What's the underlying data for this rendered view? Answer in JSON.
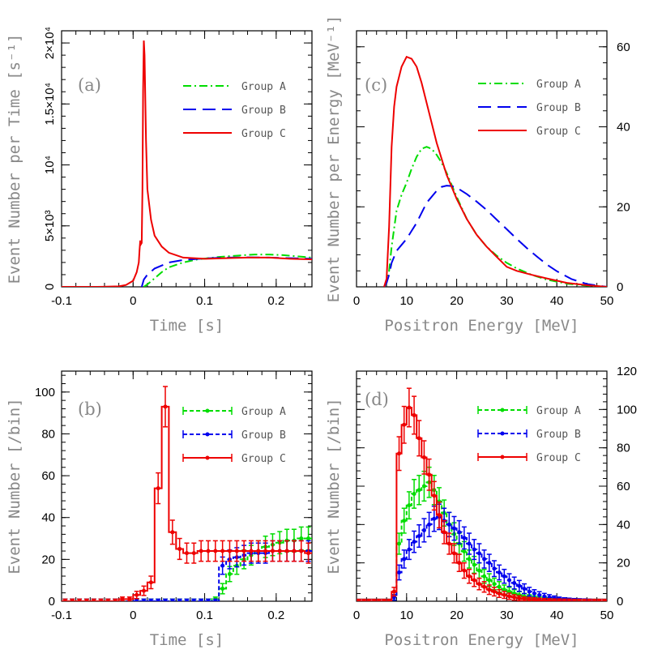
{
  "chart_data": [
    {
      "panel": "(a)",
      "type": "line",
      "xlabel": "Time [s]",
      "ylabel": "Event Number per Time [s⁻¹]",
      "xlim": [
        -0.1,
        0.25
      ],
      "ylim": [
        0,
        21000
      ],
      "xticks": [
        -0.1,
        0,
        0.1,
        0.2
      ],
      "xtick_labels": [
        "-0.1",
        "0",
        "0.1",
        "0.2"
      ],
      "yticks": [
        0,
        5000,
        10000,
        15000,
        20000
      ],
      "ytick_labels": [
        "0",
        "5×10³",
        "10⁴",
        "1.5×10⁴",
        "2×10⁴"
      ],
      "legend_position": "top-right",
      "series": [
        {
          "name": "Group A",
          "color": "#00dd00",
          "style": "dashdot",
          "x": [
            0.015,
            0.02,
            0.03,
            0.04,
            0.05,
            0.07,
            0.09,
            0.12,
            0.15,
            0.17,
            0.19,
            0.21,
            0.23,
            0.25
          ],
          "y": [
            0,
            200,
            700,
            1200,
            1600,
            2000,
            2250,
            2450,
            2580,
            2650,
            2650,
            2600,
            2500,
            2400
          ]
        },
        {
          "name": "Group B",
          "color": "#0000ee",
          "style": "longdash",
          "x": [
            0.012,
            0.015,
            0.02,
            0.03,
            0.05,
            0.07,
            0.1,
            0.13,
            0.16,
            0.19,
            0.22,
            0.25
          ],
          "y": [
            0,
            600,
            1000,
            1500,
            2000,
            2200,
            2330,
            2400,
            2420,
            2400,
            2350,
            2300
          ]
        },
        {
          "name": "Group C",
          "color": "#ee0000",
          "style": "solid",
          "x": [
            -0.1,
            -0.05,
            -0.02,
            -0.01,
            0,
            0.005,
            0.008,
            0.009,
            0.01,
            0.011,
            0.012,
            0.013,
            0.014,
            0.015,
            0.016,
            0.018,
            0.02,
            0.025,
            0.03,
            0.04,
            0.05,
            0.07,
            0.1,
            0.13,
            0.16,
            0.19,
            0.22,
            0.25
          ],
          "y": [
            0,
            0,
            40,
            150,
            500,
            1200,
            2000,
            3000,
            3800,
            3500,
            3600,
            8000,
            16000,
            20200,
            19000,
            12000,
            8000,
            5500,
            4200,
            3300,
            2800,
            2400,
            2300,
            2350,
            2400,
            2400,
            2300,
            2250
          ]
        }
      ]
    },
    {
      "panel": "(c)",
      "type": "line",
      "xlabel": "Positron Energy [MeV]",
      "ylabel": "Event Number per Energy [MeV⁻¹]",
      "xlim": [
        0,
        50
      ],
      "ylim": [
        0,
        64
      ],
      "xticks": [
        0,
        10,
        20,
        30,
        40,
        50
      ],
      "xtick_labels": [
        "0",
        "10",
        "20",
        "30",
        "40",
        "50"
      ],
      "yticks": [
        0,
        20,
        40,
        60
      ],
      "ytick_labels": [
        "0",
        "20",
        "40",
        "60"
      ],
      "legend_position": "top-right",
      "series": [
        {
          "name": "Group A",
          "color": "#00dd00",
          "style": "dashdot",
          "x": [
            5.5,
            6,
            6.5,
            7,
            8,
            9,
            10,
            11,
            12,
            13,
            14,
            15,
            16,
            17,
            18,
            19,
            20,
            22,
            24,
            26,
            28,
            30,
            32,
            35,
            38,
            42,
            46,
            50
          ],
          "y": [
            0,
            1,
            4,
            10,
            19,
            23,
            26,
            29.5,
            32.5,
            34.5,
            35,
            34.5,
            33,
            31,
            28.5,
            25.5,
            22.5,
            17,
            13,
            10,
            7.8,
            6,
            4.6,
            3,
            1.8,
            0.8,
            0.3,
            0
          ]
        },
        {
          "name": "Group B",
          "color": "#0000ee",
          "style": "longdash",
          "x": [
            5.5,
            6,
            6.5,
            7,
            8,
            10,
            12,
            14,
            16,
            17,
            18,
            19,
            20,
            22,
            24,
            26,
            28,
            30,
            32,
            34,
            36,
            38,
            40,
            43,
            46,
            50
          ],
          "y": [
            0,
            1,
            3,
            6,
            9,
            12,
            16,
            21,
            24,
            25,
            25.3,
            25.2,
            24.8,
            23.2,
            21.3,
            19.2,
            16.8,
            14.4,
            12,
            9.7,
            7.6,
            5.6,
            3.9,
            1.9,
            0.7,
            0
          ]
        },
        {
          "name": "Group C",
          "color": "#ee0000",
          "style": "solid",
          "x": [
            5.5,
            6,
            6.5,
            7,
            7.5,
            8,
            9,
            10,
            11,
            12,
            13,
            14,
            15,
            16,
            18,
            20,
            22,
            24,
            26,
            28,
            30,
            32,
            35,
            38,
            42,
            46,
            50
          ],
          "y": [
            0,
            2,
            15,
            35,
            45,
            50,
            55,
            57.5,
            57,
            55,
            51,
            46,
            41,
            36,
            28,
            22,
            17,
            13,
            10,
            7.5,
            5,
            4,
            3,
            2.1,
            1,
            0.4,
            0
          ]
        }
      ]
    },
    {
      "panel": "(b)",
      "type": "histogram",
      "xlabel": "Time [s]",
      "ylabel": "Event Number [/bin]",
      "xlim": [
        -0.1,
        0.25
      ],
      "ylim": [
        0,
        110
      ],
      "xticks": [
        -0.1,
        0,
        0.1,
        0.2
      ],
      "xtick_labels": [
        "-0.1",
        "0",
        "0.1",
        "0.2"
      ],
      "yticks": [
        0,
        20,
        40,
        60,
        80,
        100
      ],
      "ytick_labels": [
        "0",
        "20",
        "40",
        "60",
        "80",
        "100"
      ],
      "bin_width": 0.01,
      "bin_start": -0.1,
      "legend_position": "top-right",
      "series": [
        {
          "name": "Group A",
          "color": "#00dd00",
          "style": "dashed",
          "values": [
            0,
            0,
            0,
            0,
            0,
            0,
            0,
            0,
            0,
            0,
            0,
            0,
            0,
            0,
            0,
            0,
            0,
            0,
            0,
            0,
            0,
            1,
            6,
            13,
            17,
            20,
            22,
            24,
            26,
            27,
            28,
            29,
            29,
            30,
            30,
            30,
            30,
            29,
            29,
            28,
            28,
            27,
            27,
            26,
            26,
            26,
            25,
            25,
            25,
            25,
            24,
            24,
            24,
            24,
            24
          ]
        },
        {
          "name": "Group B",
          "color": "#0000ee",
          "style": "dashed",
          "values": [
            0,
            0,
            0,
            0,
            0,
            0,
            0,
            0,
            0,
            0,
            0,
            0,
            0,
            0,
            0,
            0,
            0,
            0,
            0,
            0,
            0,
            0,
            17,
            20,
            21,
            22,
            23,
            23,
            23,
            24,
            24,
            24,
            24,
            24,
            24,
            24,
            24,
            24,
            24,
            24,
            24,
            24,
            24,
            24,
            24,
            24,
            24,
            24,
            24,
            24,
            24,
            24,
            24,
            24,
            24
          ]
        },
        {
          "name": "Group C",
          "color": "#ee0000",
          "style": "solid",
          "values": [
            0,
            0,
            0,
            0,
            0,
            0,
            0,
            0,
            1,
            1,
            3,
            5,
            9,
            54,
            93,
            33,
            25,
            23,
            23,
            24,
            24,
            24,
            24,
            24,
            24,
            24,
            24,
            24,
            24,
            24,
            24,
            24,
            24,
            24,
            23,
            23,
            23,
            23,
            23,
            23,
            23,
            23,
            23,
            23,
            23,
            23,
            23,
            23,
            23,
            23,
            23,
            23,
            23,
            23,
            23
          ]
        }
      ]
    },
    {
      "panel": "(d)",
      "type": "histogram",
      "xlabel": "Positron Energy [MeV]",
      "ylabel": "Event Number [/bin]",
      "xlim": [
        0,
        50
      ],
      "ylim": [
        0,
        120
      ],
      "xticks": [
        0,
        10,
        20,
        30,
        40,
        50
      ],
      "xtick_labels": [
        "0",
        "10",
        "20",
        "30",
        "40",
        "50"
      ],
      "yticks": [
        0,
        20,
        40,
        60,
        80,
        100,
        120
      ],
      "ytick_labels": [
        "0",
        "20",
        "40",
        "60",
        "80",
        "100",
        "120"
      ],
      "bin_width": 1,
      "bin_start": 0,
      "legend_position": "top-right",
      "series": [
        {
          "name": "Group A",
          "color": "#00dd00",
          "style": "dashed",
          "values": [
            0,
            0,
            0,
            0,
            0,
            0,
            0,
            2,
            30,
            42,
            50,
            56,
            58,
            60,
            62,
            58,
            52,
            46,
            40,
            35,
            30,
            26,
            22,
            19,
            16,
            13,
            11,
            9,
            7.5,
            6,
            5,
            4,
            3.2,
            2.5,
            2,
            1.5,
            1.2,
            1,
            0.8,
            0.6,
            0.4,
            0.3,
            0.2,
            0.2,
            0.1,
            0.1,
            0,
            0,
            0,
            0
          ]
        },
        {
          "name": "Group B",
          "color": "#0000ee",
          "style": "dashed",
          "values": [
            0,
            0,
            0,
            0,
            0,
            0,
            0,
            2,
            15,
            22,
            27,
            31,
            34,
            37,
            40,
            43,
            44,
            42,
            40,
            38,
            36,
            33,
            30,
            27,
            25,
            22,
            20,
            17,
            15,
            13,
            11,
            9.5,
            8,
            6.5,
            5,
            4,
            3.2,
            2.5,
            2,
            1.5,
            1.1,
            0.8,
            0.6,
            0.4,
            0.3,
            0.2,
            0.1,
            0,
            0,
            0
          ]
        },
        {
          "name": "Group C",
          "color": "#ee0000",
          "style": "solid",
          "values": [
            0,
            0,
            0,
            0,
            0,
            0,
            0,
            5,
            77,
            92,
            101,
            97,
            85,
            75,
            66,
            55,
            45,
            36,
            30,
            25,
            20,
            16,
            13,
            11,
            9,
            7.5,
            6,
            5,
            4,
            3.3,
            2.6,
            2,
            1.6,
            1.2,
            1,
            0.8,
            0.6,
            0.4,
            0.3,
            0.2,
            0.2,
            0.1,
            0.1,
            0,
            0,
            0,
            0,
            0,
            0,
            0
          ]
        }
      ]
    }
  ]
}
